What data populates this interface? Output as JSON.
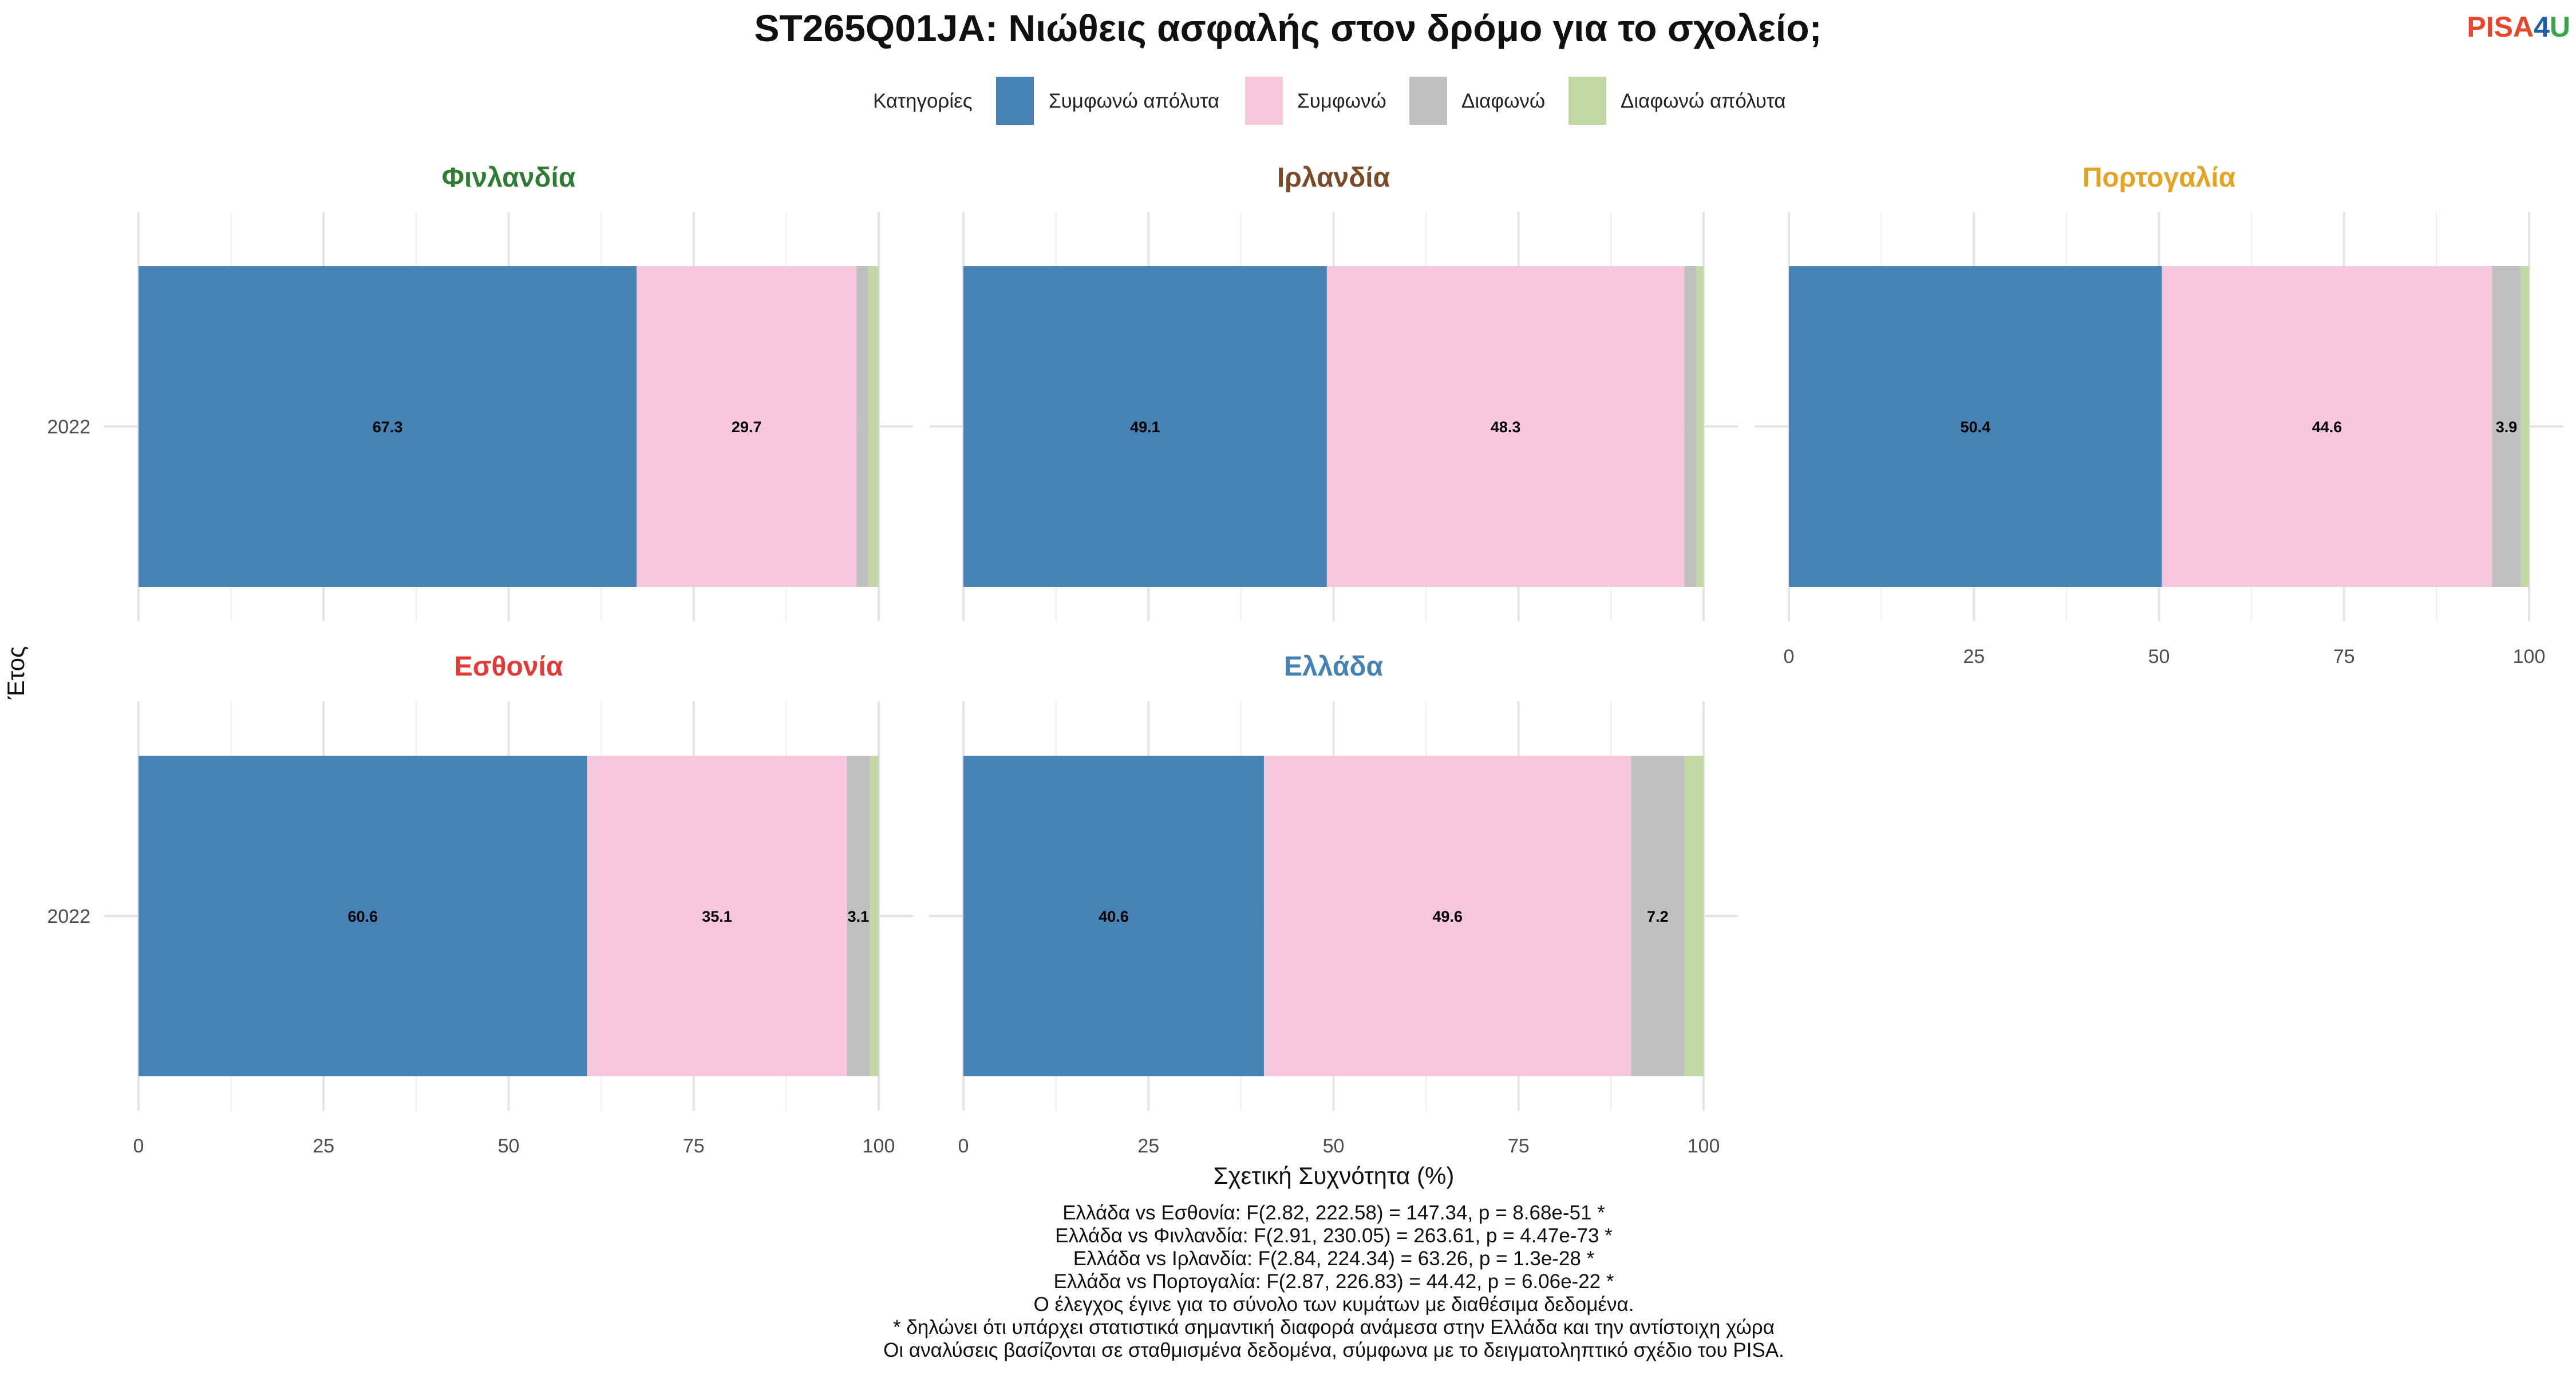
{
  "title": "ST265Q01JA: Νιώθεις ασφαλής στον δρόμο για το σχολείο;",
  "logo": {
    "part1": "PISA",
    "part2": "4",
    "part3": "U",
    "colors": [
      "#e8452b",
      "#1f5fa8",
      "#3aa64a"
    ]
  },
  "legend": {
    "title": "Κατηγορίες",
    "items": [
      {
        "label": "Συμφωνώ απόλυτα",
        "color": "#4682b4"
      },
      {
        "label": "Συμφωνώ",
        "color": "#f7c8dd"
      },
      {
        "label": "Διαφωνώ",
        "color": "#c0c0c0"
      },
      {
        "label": "Διαφωνώ απόλυτα",
        "color": "#c2d8a4"
      }
    ]
  },
  "chart_data": {
    "type": "bar",
    "orientation": "horizontal",
    "stacked": true,
    "xlabel": "Σχετική Συχνότητα (%)",
    "ylabel": "Έτος",
    "xlim": [
      0,
      100
    ],
    "xticks": [
      0,
      25,
      50,
      75,
      100
    ],
    "grid": true,
    "legend_position": "top",
    "categories": [
      "Συμφωνώ απόλυτα",
      "Συμφωνώ",
      "Διαφωνώ",
      "Διαφωνώ απόλυτα"
    ],
    "panels": [
      {
        "name": "Φινλανδία",
        "color": "#2e7d32",
        "year": "2022",
        "values": [
          67.3,
          29.7,
          1.6,
          1.4
        ],
        "labels": [
          "67.3",
          "29.7",
          "",
          ""
        ]
      },
      {
        "name": "Ιρλανδία",
        "color": "#7b4a26",
        "year": "2022",
        "values": [
          49.1,
          48.3,
          1.6,
          1.0
        ],
        "labels": [
          "49.1",
          "48.3",
          "",
          ""
        ]
      },
      {
        "name": "Πορτογαλία",
        "color": "#e5a323",
        "year": "2022",
        "values": [
          50.4,
          44.6,
          3.9,
          1.1
        ],
        "labels": [
          "50.4",
          "44.6",
          "3.9",
          ""
        ]
      },
      {
        "name": "Εσθονία",
        "color": "#e53935",
        "year": "2022",
        "values": [
          60.6,
          35.1,
          3.1,
          1.2
        ],
        "labels": [
          "60.6",
          "35.1",
          "3.1",
          ""
        ]
      },
      {
        "name": "Ελλάδα",
        "color": "#4682b4",
        "year": "2022",
        "values": [
          40.6,
          49.6,
          7.2,
          2.6
        ],
        "labels": [
          "40.6",
          "49.6",
          "7.2",
          ""
        ]
      }
    ]
  },
  "caption": [
    "Ελλάδα vs Εσθονία: F(2.82, 222.58) = 147.34, p = 8.68e-51 *",
    "Ελλάδα vs Φινλανδία: F(2.91, 230.05) = 263.61, p = 4.47e-73 *",
    "Ελλάδα vs Ιρλανδία: F(2.84, 224.34) = 63.26, p = 1.3e-28 *",
    "Ελλάδα vs Πορτογαλία: F(2.87, 226.83) = 44.42, p = 6.06e-22 *",
    "Ο έλεγχος έγινε για το σύνολο των κυμάτων με διαθέσιμα δεδομένα.",
    "* δηλώνει ότι υπάρχει στατιστικά σημαντική διαφορά ανάμεσα στην Ελλάδα και την αντίστοιχη χώρα",
    "Οι αναλύσεις βασίζονται σε σταθμισμένα δεδομένα, σύμφωνα με το δειγματοληπτικό σχέδιο του PISA."
  ]
}
